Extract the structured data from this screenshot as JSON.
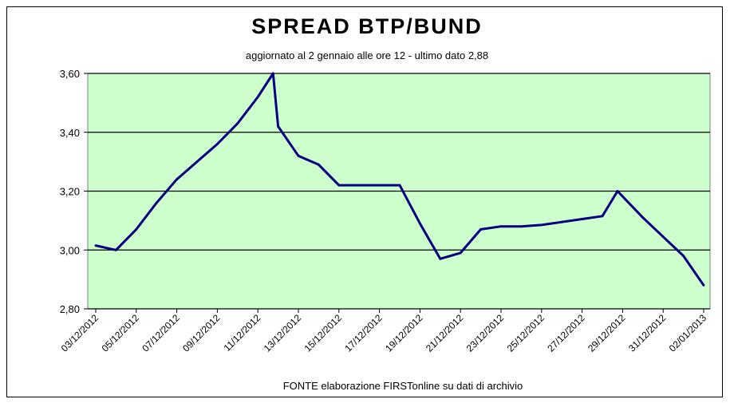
{
  "chart_data": {
    "type": "line",
    "title": "SPREAD  BTP/BUND",
    "subtitle": "aggiornato al 2 gennaio alle ore 12 - ultimo dato 2,88",
    "source": "FONTE elaborazione FIRSTonline su dati di archivio",
    "xlabel": "",
    "ylabel": "",
    "ylim": [
      2.8,
      3.6
    ],
    "yticks": [
      "2,80",
      "3,00",
      "3,20",
      "3,40",
      "3,60"
    ],
    "ytick_values": [
      2.8,
      3.0,
      3.2,
      3.4,
      3.6
    ],
    "xlim": [
      "03/12/2012",
      "02/01/2013"
    ],
    "xticks": [
      "03/12/2012",
      "05/12/2012",
      "07/12/2012",
      "09/12/2012",
      "11/12/2012",
      "13/12/2012",
      "15/12/2012",
      "17/12/2012",
      "19/12/2012",
      "21/12/2012",
      "23/12/2012",
      "25/12/2012",
      "27/12/2012",
      "29/12/2012",
      "31/12/2012",
      "02/01/2013"
    ],
    "grid": "horizontal",
    "legend": "none",
    "series": [
      {
        "points": [
          [
            "2012-12-03",
            3.015
          ],
          [
            "2012-12-04",
            3.0
          ],
          [
            "2012-12-05",
            3.07
          ],
          [
            "2012-12-06",
            3.16
          ],
          [
            "2012-12-07",
            3.24
          ],
          [
            "2012-12-08",
            3.3
          ],
          [
            "2012-12-09",
            3.36
          ],
          [
            "2012-12-10",
            3.43
          ],
          [
            "2012-12-11",
            3.52
          ],
          [
            "2012-12-11T18:00",
            3.6
          ],
          [
            "2012-12-12",
            3.42
          ],
          [
            "2012-12-13",
            3.32
          ],
          [
            "2012-12-14",
            3.29
          ],
          [
            "2012-12-15",
            3.22
          ],
          [
            "2012-12-16",
            3.22
          ],
          [
            "2012-12-17",
            3.22
          ],
          [
            "2012-12-18",
            3.22
          ],
          [
            "2012-12-19",
            3.09
          ],
          [
            "2012-12-20",
            2.97
          ],
          [
            "2012-12-21",
            2.99
          ],
          [
            "2012-12-22",
            3.07
          ],
          [
            "2012-12-23",
            3.08
          ],
          [
            "2012-12-24",
            3.08
          ],
          [
            "2012-12-25",
            3.085
          ],
          [
            "2012-12-26",
            3.095
          ],
          [
            "2012-12-27",
            3.105
          ],
          [
            "2012-12-28",
            3.115
          ],
          [
            "2012-12-28T18:00",
            3.2
          ],
          [
            "2012-12-30",
            3.11
          ],
          [
            "2012-12-31",
            3.045
          ],
          [
            "2013-01-01",
            2.98
          ],
          [
            "2013-01-02",
            2.88
          ]
        ]
      }
    ]
  },
  "colors": {
    "plot_background": "#ccffcc",
    "line": "#000080",
    "grid": "#000000"
  }
}
